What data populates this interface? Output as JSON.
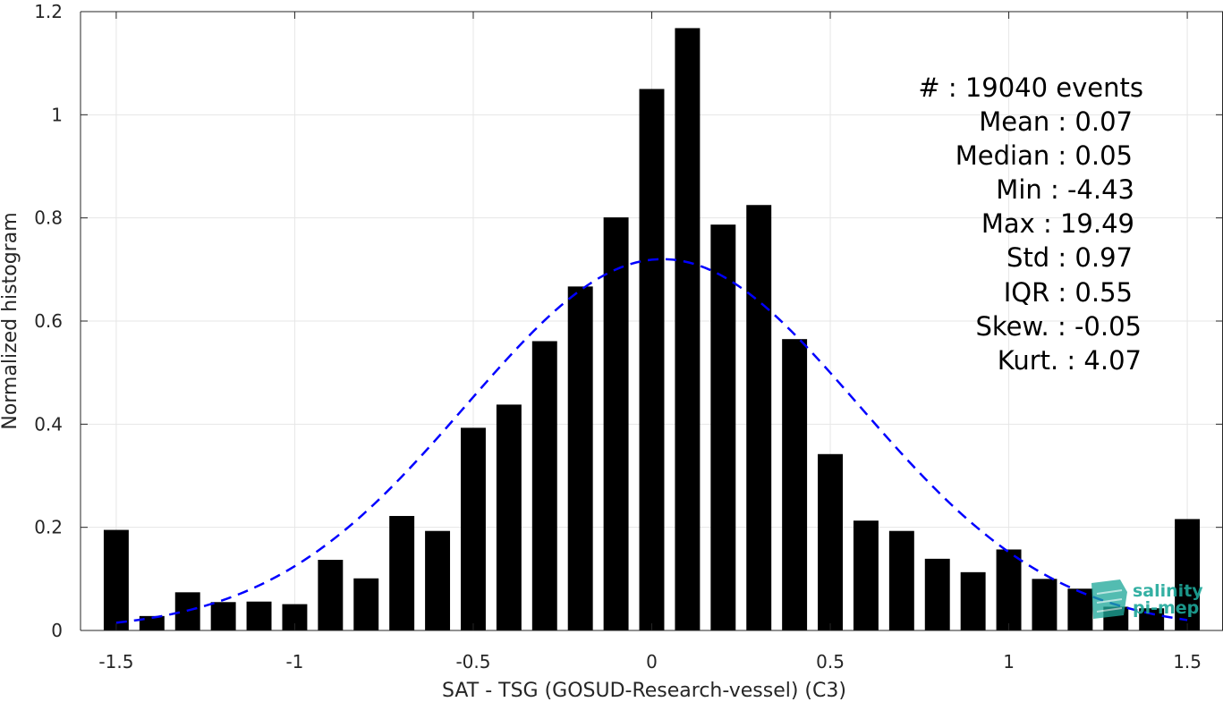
{
  "chart_data": {
    "type": "bar",
    "xlabel": "SAT - TSG (GOSUD-Research-vessel) (C3)",
    "ylabel": "Normalized histogram",
    "xlim": [
      -1.6,
      1.6
    ],
    "ylim": [
      0,
      1.2
    ],
    "xticks": [
      "-1.5",
      "-1",
      "-0.5",
      "0",
      "0.5",
      "1",
      "1.5"
    ],
    "yticks": [
      "0",
      "0.2",
      "0.4",
      "0.6",
      "0.8",
      "1",
      "1.2"
    ],
    "grid": true,
    "bar_color": "#000000",
    "bar_width": 0.07,
    "x": [
      -1.5,
      -1.4,
      -1.3,
      -1.2,
      -1.1,
      -1.0,
      -0.9,
      -0.8,
      -0.7,
      -0.6,
      -0.5,
      -0.4,
      -0.3,
      -0.2,
      -0.1,
      0.0,
      0.1,
      0.2,
      0.3,
      0.4,
      0.5,
      0.6,
      0.7,
      0.8,
      0.9,
      1.0,
      1.1,
      1.2,
      1.3,
      1.4,
      1.5
    ],
    "values": [
      0.195,
      0.028,
      0.074,
      0.055,
      0.056,
      0.051,
      0.137,
      0.101,
      0.222,
      0.193,
      0.393,
      0.438,
      0.561,
      0.667,
      0.801,
      1.05,
      1.168,
      0.787,
      0.825,
      0.565,
      0.342,
      0.213,
      0.193,
      0.139,
      0.113,
      0.157,
      0.1,
      0.081,
      0.046,
      0.043,
      0.216
    ],
    "fit_curve": {
      "type": "gaussian",
      "color": "#0000ff",
      "style": "dashed",
      "mean": 0.03,
      "std": 0.55,
      "peak": 0.72,
      "x_range": [
        -1.5,
        1.5
      ]
    },
    "stats": {
      "lines": [
        "#  : 19040 events",
        "Mean : 0.07",
        "Median : 0.05",
        "Min : -4.43",
        "Max : 19.49",
        "Std : 0.97",
        "IQR : 0.55",
        "Skew. : -0.05",
        "Kurt. : 4.07"
      ]
    }
  },
  "logo": {
    "line1": "salinity",
    "line2": "pi-mep",
    "color": "#1fa89a"
  }
}
